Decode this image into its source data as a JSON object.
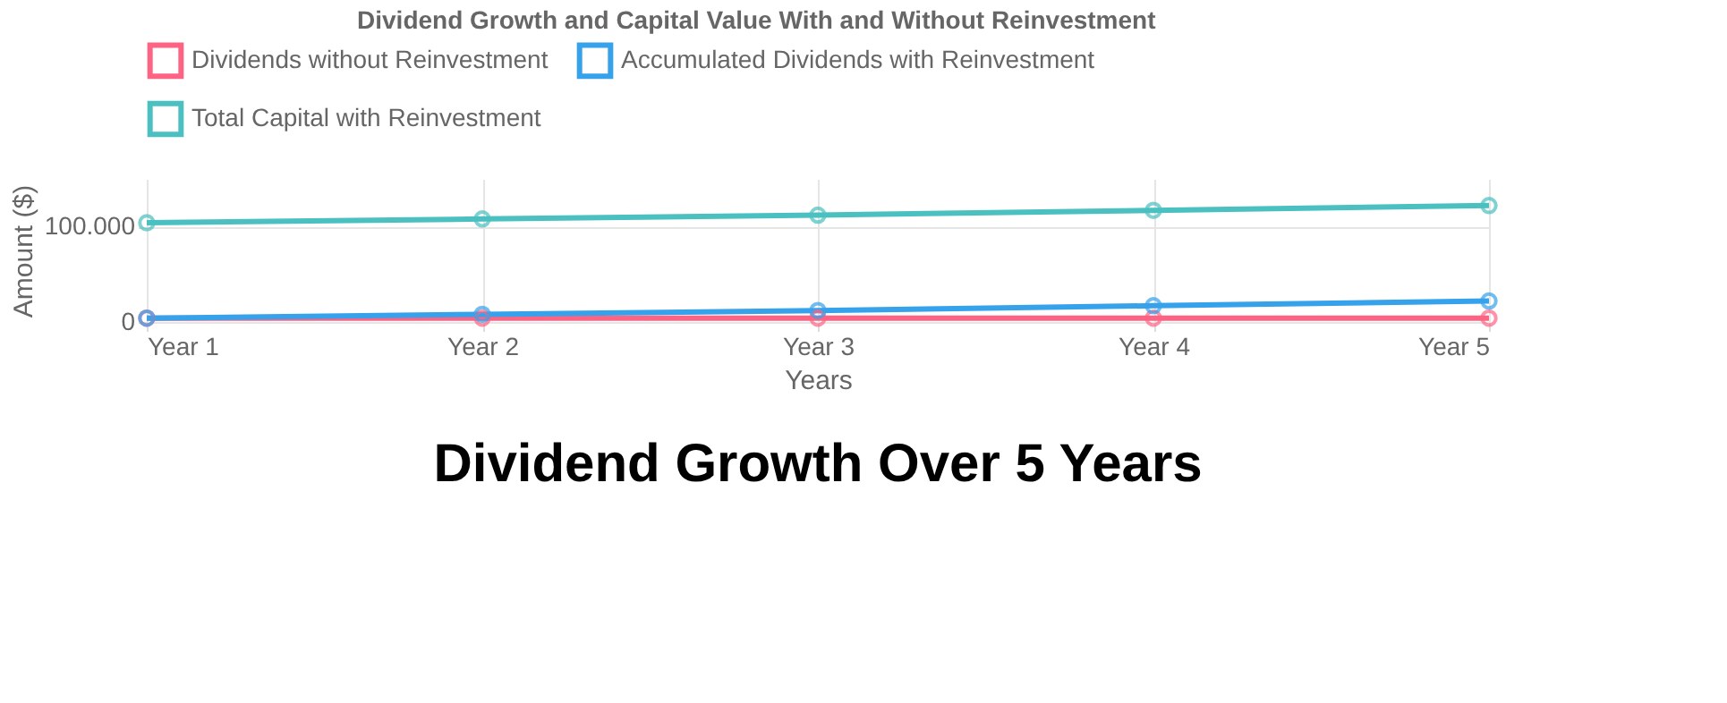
{
  "chart_data": {
    "type": "line",
    "title": "Dividend Growth and Capital Value With and Without Reinvestment",
    "xlabel": "Years",
    "ylabel": "Amount ($)",
    "categories": [
      "Year 1",
      "Year 2",
      "Year 3",
      "Year 4",
      "Year 5"
    ],
    "series": [
      {
        "name": "Dividends without Reinvestment",
        "color": "#ff6384",
        "values": [
          4000,
          4000,
          4000,
          4000,
          4000
        ]
      },
      {
        "name": "Accumulated Dividends with Reinvestment",
        "color": "#36a2eb",
        "values": [
          4000,
          8000,
          12000,
          17000,
          22000
        ]
      },
      {
        "name": "Total Capital with Reinvestment",
        "color": "#4bc0c0",
        "values": [
          104000,
          108000,
          112000,
          117000,
          122000
        ]
      }
    ],
    "ylim": [
      0,
      150000
    ],
    "yticks": [
      0,
      {
        "value": 100000,
        "label": "100.000"
      }
    ],
    "grid": true,
    "legend": "top",
    "marker": "circle",
    "line_style": "solid",
    "annotations": [
      "Dividend Growth Over 5 Years"
    ]
  }
}
